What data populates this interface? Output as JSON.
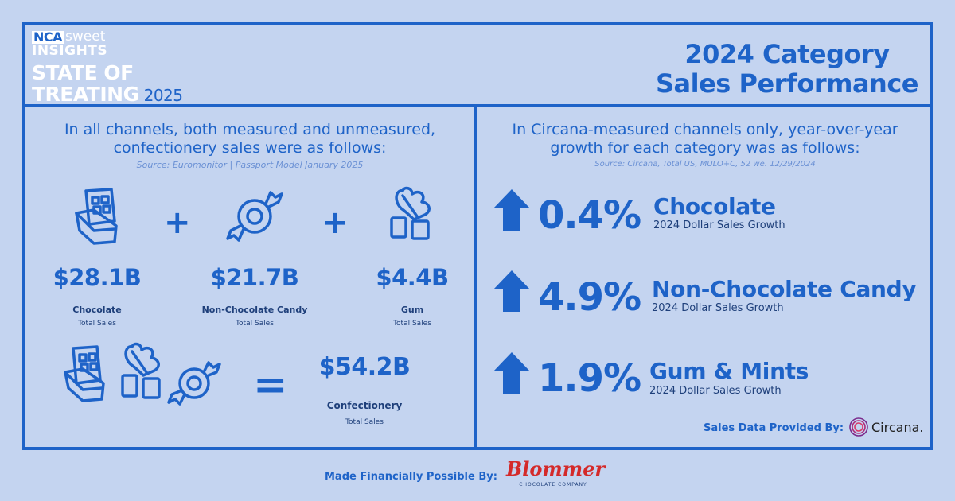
{
  "logo": {
    "nca": "NCA",
    "sweet": "sweet",
    "insights": "INSIGHTS",
    "line1": "STATE OF",
    "line2": "TREATING",
    "year": "2025"
  },
  "title": {
    "line1": "2024 Category",
    "line2": "Sales Performance"
  },
  "left": {
    "intro_line1": "In all channels, both measured and unmeasured,",
    "intro_line2": "confectionery sales were as follows:",
    "source": "Source: Euromonitor | Passport Model January 2025",
    "categories": [
      {
        "value": "$28.1B",
        "name": "Chocolate",
        "sub": "Total Sales",
        "icon": "chocolate-bar-icon"
      },
      {
        "value": "$21.7B",
        "name": "Non-Chocolate Candy",
        "sub": "Total Sales",
        "icon": "wrapped-candy-icon"
      },
      {
        "value": "$4.4B",
        "name": "Gum",
        "sub": "Total Sales",
        "icon": "gum-mint-icon"
      }
    ],
    "plus": "+",
    "equals": "=",
    "total": {
      "value": "$54.2B",
      "name": "Confectionery",
      "sub": "Total Sales"
    }
  },
  "right": {
    "intro_line1": "In Circana-measured channels only, year-over-year",
    "intro_line2": "growth for each category was as follows:",
    "source": "Source: Circana, Total US, MULO+C, 52 we. 12/29/2024",
    "growth": [
      {
        "pct": "0.4%",
        "name": "Chocolate",
        "sub": "2024 Dollar Sales Growth"
      },
      {
        "pct": "4.9%",
        "name": "Non-Chocolate Candy",
        "sub": "2024 Dollar Sales Growth"
      },
      {
        "pct": "1.9%",
        "name": "Gum & Mints",
        "sub": "2024 Dollar Sales Growth"
      }
    ],
    "provided_label": "Sales Data Provided By:",
    "provider": "Circana."
  },
  "footer": {
    "made_label": "Made Financially Possible By:",
    "sponsor": "Blommer",
    "sponsor_sub": "CHOCOLATE COMPANY"
  },
  "colors": {
    "background": "#c4d4f0",
    "primary": "#1e63c8",
    "dark_text": "#1e3f7a",
    "sponsor_red": "#d42a2a"
  }
}
